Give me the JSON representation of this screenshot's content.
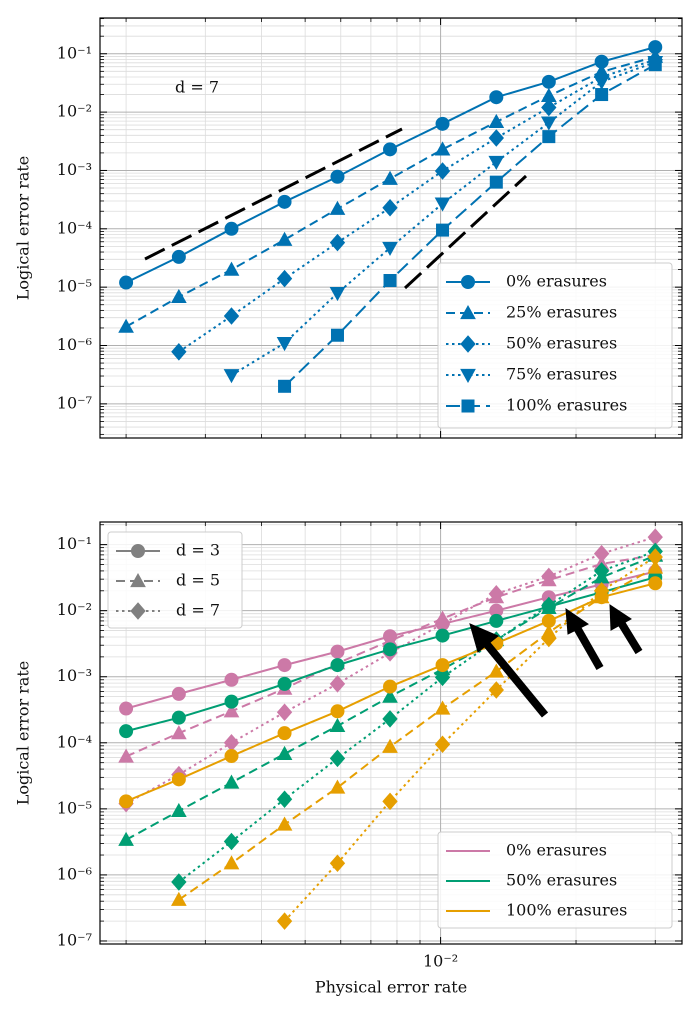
{
  "chart_data": [
    {
      "type": "line",
      "annotation": "d = 7",
      "ylabel": "Logical error rate",
      "log_x": true,
      "log_y": true,
      "grid": true,
      "minor_grid": true,
      "legend": "lower right",
      "x": [
        0.002,
        0.00262,
        0.00343,
        0.0045,
        0.0059,
        0.00772,
        0.0101,
        0.0133,
        0.0174,
        0.0228,
        0.03
      ],
      "xlim": [
        0.00175,
        0.0344
      ],
      "xticks": [
        {
          "value": 0.01,
          "label": "10⁻²"
        }
      ],
      "ylim": [
        2.6e-08,
        0.41
      ],
      "yticks": [
        {
          "value": 0.1,
          "label": "10⁻¹"
        },
        {
          "value": 0.01,
          "label": "10⁻²"
        },
        {
          "value": 0.001,
          "label": "10⁻³"
        },
        {
          "value": 0.0001,
          "label": "10⁻⁴"
        },
        {
          "value": 1e-05,
          "label": "10⁻⁵"
        },
        {
          "value": 1e-06,
          "label": "10⁻⁶"
        },
        {
          "value": 1e-07,
          "label": "10⁻⁷"
        }
      ],
      "series": [
        {
          "name": "0% erasures",
          "color": "#0072b2",
          "marker": "circle",
          "dash": "solid",
          "values": [
            1.2e-05,
            3.3e-05,
            0.0001,
            0.00029,
            0.00078,
            0.0023,
            0.0063,
            0.018,
            0.033,
            0.073,
            0.13
          ]
        },
        {
          "name": "25% erasures",
          "color": "#0072b2",
          "marker": "triangle-up",
          "dash": "dashed",
          "values": [
            2.1e-06,
            6.8e-06,
            2e-05,
            6.5e-05,
            0.00022,
            0.00072,
            0.0023,
            0.0068,
            0.019,
            0.049,
            0.089
          ]
        },
        {
          "name": "50% erasures",
          "color": "#0072b2",
          "marker": "diamond",
          "dash": "dotted",
          "values": [
            null,
            7.8e-07,
            3.2e-06,
            1.4e-05,
            5.8e-05,
            0.00023,
            0.00098,
            0.0036,
            0.012,
            0.04,
            0.079
          ]
        },
        {
          "name": "75% erasures",
          "color": "#0072b2",
          "marker": "triangle-down",
          "dash": "dotted",
          "values": [
            null,
            null,
            3.1e-07,
            1.1e-06,
            7.9e-06,
            4.7e-05,
            0.00027,
            0.0014,
            0.0066,
            0.033,
            0.072
          ]
        },
        {
          "name": "100% erasures",
          "color": "#0072b2",
          "marker": "square",
          "dash": "longdash",
          "values": [
            null,
            null,
            null,
            2e-07,
            1.5e-06,
            1.3e-05,
            9.5e-05,
            0.00063,
            0.0038,
            0.02,
            0.065
          ]
        }
      ]
    },
    {
      "type": "line",
      "xlabel": "Physical error rate",
      "ylabel": "Logical error rate",
      "log_x": true,
      "log_y": true,
      "grid": true,
      "minor_grid": true,
      "legend": "lower right",
      "style_legend": "upper left",
      "x": [
        0.002,
        0.00262,
        0.00343,
        0.0045,
        0.0059,
        0.00772,
        0.0101,
        0.0133,
        0.0174,
        0.0228,
        0.03
      ],
      "xlim": [
        0.00175,
        0.0344
      ],
      "xticks": [
        {
          "value": 0.01,
          "label": "10⁻²"
        }
      ],
      "ylim": [
        9e-08,
        0.22
      ],
      "yticks": [
        {
          "value": 0.1,
          "label": "10⁻¹"
        },
        {
          "value": 0.01,
          "label": "10⁻²"
        },
        {
          "value": 0.001,
          "label": "10⁻³"
        },
        {
          "value": 0.0001,
          "label": "10⁻⁴"
        },
        {
          "value": 1e-05,
          "label": "10⁻⁵"
        },
        {
          "value": 1e-06,
          "label": "10⁻⁶"
        },
        {
          "value": 1e-07,
          "label": "10⁻⁷"
        }
      ],
      "styles": [
        {
          "name": "d = 3",
          "marker": "circle",
          "dash": "solid",
          "color": "#808080"
        },
        {
          "name": "d = 5",
          "marker": "triangle-up",
          "dash": "dashed",
          "color": "#808080"
        },
        {
          "name": "d = 7",
          "marker": "diamond",
          "dash": "dotted",
          "color": "#808080"
        }
      ],
      "series": [
        {
          "name": "0% erasures",
          "color": "#cc79a7",
          "values": [
            [
              0.00033,
              0.00055,
              0.0009,
              0.0015,
              0.0024,
              0.0041,
              0.0063,
              0.01,
              0.016,
              0.025,
              0.039
            ],
            [
              6.2e-05,
              0.00014,
              0.0003,
              0.00066,
              0.0016,
              0.0035,
              0.0076,
              0.016,
              0.029,
              0.051,
              0.07
            ],
            [
              1.2e-05,
              3.3e-05,
              0.0001,
              0.00029,
              0.00078,
              0.0023,
              0.0063,
              0.018,
              0.033,
              0.073,
              0.13
            ]
          ]
        },
        {
          "name": "50% erasures",
          "color": "#009e73",
          "values": [
            [
              0.00015,
              0.00024,
              0.00042,
              0.00078,
              0.0015,
              0.0026,
              0.0042,
              0.007,
              0.0115,
              0.019,
              0.032
            ],
            [
              3.4e-06,
              9.3e-06,
              2.5e-05,
              6.8e-05,
              0.00018,
              0.0005,
              0.0013,
              0.0036,
              0.011,
              0.032,
              0.068
            ],
            [
              null,
              7.8e-07,
              3.2e-06,
              1.4e-05,
              5.8e-05,
              0.00023,
              0.00098,
              0.0036,
              0.012,
              0.04,
              0.079
            ]
          ]
        },
        {
          "name": "100% erasures",
          "color": "#e69f00",
          "values": [
            [
              1.3e-05,
              2.8e-05,
              6.3e-05,
              0.00014,
              0.0003,
              0.00071,
              0.0015,
              0.0032,
              0.007,
              0.016,
              0.026
            ],
            [
              null,
              4.2e-07,
              1.5e-06,
              5.8e-06,
              2.1e-05,
              8.7e-05,
              0.00033,
              0.0012,
              0.0047,
              0.016,
              0.045
            ],
            [
              null,
              null,
              null,
              2e-07,
              1.5e-06,
              1.3e-05,
              9.5e-05,
              0.00063,
              0.0038,
              0.02,
              0.065
            ]
          ]
        }
      ]
    }
  ]
}
